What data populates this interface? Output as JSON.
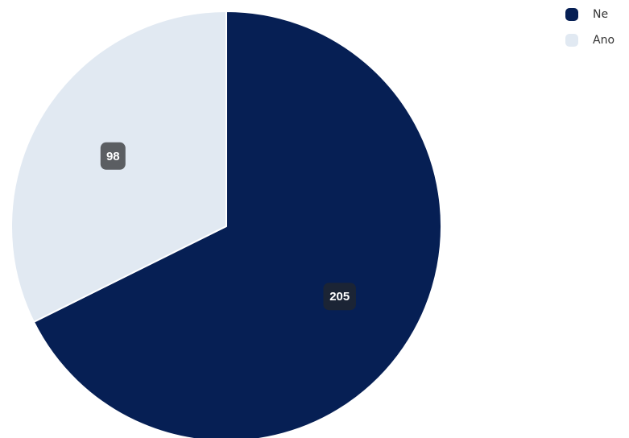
{
  "chart_data": {
    "type": "pie",
    "categories": [
      "Ne",
      "Ano"
    ],
    "values": [
      205,
      98
    ],
    "colors": [
      "#061f54",
      "#e1e9f2"
    ],
    "label_box_colors": [
      "#1b2435",
      "#5b5e62"
    ],
    "legend_position": "top-right",
    "data_labels": [
      "205",
      "98"
    ]
  }
}
